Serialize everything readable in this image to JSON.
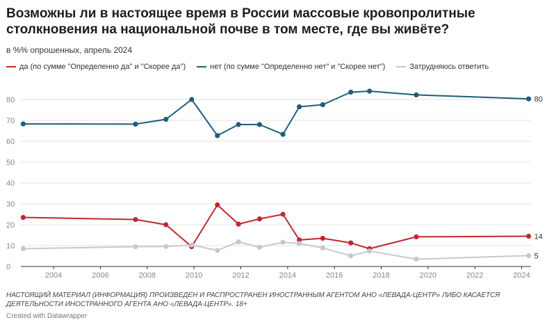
{
  "title": "Возможны ли в настоящее время в России массовые кровопролитные столкновения на национальной почве в том месте, где вы живёте?",
  "subtitle": "в %% опрошенных, апрель 2024",
  "footnote": "НАСТОЯЩИЙ МАТЕРИАЛ (ИНФОРМАЦИЯ) ПРОИЗВЕДЕН И РАСПРОСТРАНЕН ИНОСТРАННЫМ АГЕНТОМ АНО «ЛЕВАДА-ЦЕНТР» ЛИБО КАСАЕТСЯ ДЕЯТЕЛЬНОСТИ ИНОСТРАННОГО АГЕНТА АНО «ЛЕВАДА-ЦЕНТР». 18+",
  "credit": "Created with Datawrapper",
  "chart_data": {
    "type": "line",
    "title": "Возможны ли в настоящее время в России массовые кровопролитные столкновения на национальной почве в том месте, где вы живёте?",
    "subtitle": "в %% опрошенных, апрель 2024",
    "xlabel": "",
    "ylabel": "",
    "xlim": [
      2002.6,
      2024.4
    ],
    "ylim": [
      0,
      85
    ],
    "x_ticks": [
      "2004",
      "2006",
      "2008",
      "2010",
      "2012",
      "2014",
      "2016",
      "2018",
      "2020",
      "2022",
      "2024"
    ],
    "y_ticks": [
      "0",
      "10",
      "20",
      "30",
      "40",
      "50",
      "60",
      "70",
      "80"
    ],
    "grid": true,
    "legend_position": "top-left",
    "series": [
      {
        "name": "да (по сумме \"Определенно да\" и \"Скорее да\")",
        "color": "#c0282d",
        "end_label": "14",
        "points": [
          {
            "x": 2002.7,
            "y": 23.5
          },
          {
            "x": 2007.5,
            "y": 22.5
          },
          {
            "x": 2008.8,
            "y": 20
          },
          {
            "x": 2009.9,
            "y": 9.5
          },
          {
            "x": 2011.0,
            "y": 29.5
          },
          {
            "x": 2011.9,
            "y": 20.3
          },
          {
            "x": 2012.8,
            "y": 22.8
          },
          {
            "x": 2013.8,
            "y": 25
          },
          {
            "x": 2014.5,
            "y": 12.7
          },
          {
            "x": 2015.5,
            "y": 13.5
          },
          {
            "x": 2016.7,
            "y": 11.3
          },
          {
            "x": 2017.5,
            "y": 8.5
          },
          {
            "x": 2019.5,
            "y": 14.2
          },
          {
            "x": 2024.3,
            "y": 14.5
          }
        ]
      },
      {
        "name": "нет (по сумме \"Определенно нет\" и \"Скорее нет\")",
        "color": "#1e5e78",
        "end_label": "80",
        "points": [
          {
            "x": 2002.7,
            "y": 68.3
          },
          {
            "x": 2007.5,
            "y": 68.2
          },
          {
            "x": 2008.8,
            "y": 70.5
          },
          {
            "x": 2009.9,
            "y": 80
          },
          {
            "x": 2011.0,
            "y": 62.7
          },
          {
            "x": 2011.9,
            "y": 68
          },
          {
            "x": 2012.8,
            "y": 68
          },
          {
            "x": 2013.8,
            "y": 63.3
          },
          {
            "x": 2014.5,
            "y": 76.5
          },
          {
            "x": 2015.5,
            "y": 77.5
          },
          {
            "x": 2016.7,
            "y": 83.5
          },
          {
            "x": 2017.5,
            "y": 84
          },
          {
            "x": 2019.5,
            "y": 82.2
          },
          {
            "x": 2024.3,
            "y": 80.3
          }
        ]
      },
      {
        "name": "Затрудняюсь ответить",
        "color": "#c8c8c8",
        "end_label": "5",
        "points": [
          {
            "x": 2002.7,
            "y": 8.5
          },
          {
            "x": 2007.5,
            "y": 9.5
          },
          {
            "x": 2008.8,
            "y": 9.6
          },
          {
            "x": 2009.9,
            "y": 10.3
          },
          {
            "x": 2011.0,
            "y": 7.7
          },
          {
            "x": 2011.9,
            "y": 11.8
          },
          {
            "x": 2012.8,
            "y": 9.2
          },
          {
            "x": 2013.8,
            "y": 11.6
          },
          {
            "x": 2014.5,
            "y": 11
          },
          {
            "x": 2015.5,
            "y": 8.9
          },
          {
            "x": 2016.7,
            "y": 5.1
          },
          {
            "x": 2017.5,
            "y": 7.4
          },
          {
            "x": 2019.5,
            "y": 3.5
          },
          {
            "x": 2024.3,
            "y": 5.2
          }
        ]
      }
    ]
  }
}
